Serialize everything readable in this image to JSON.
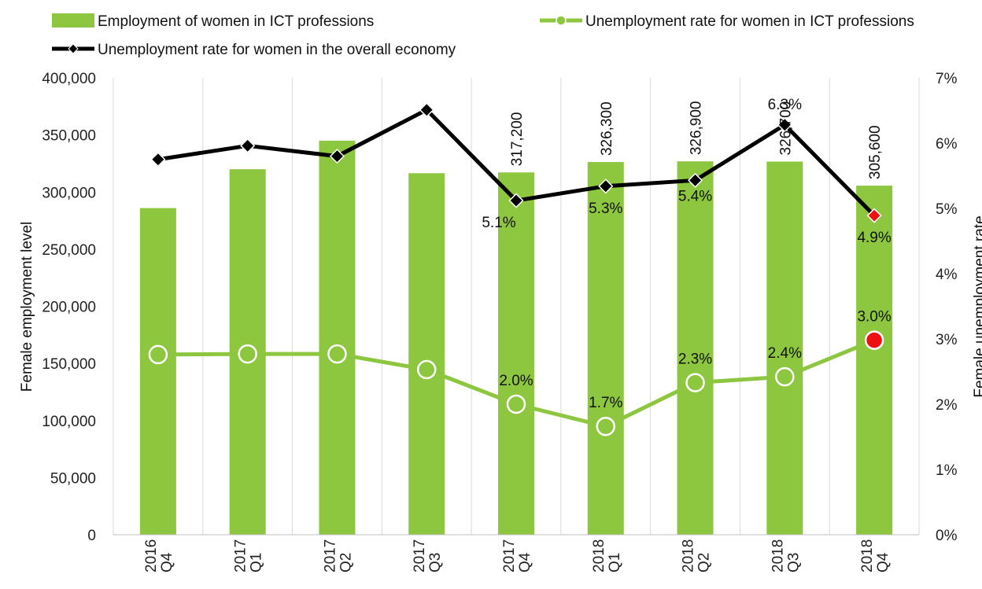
{
  "chart_data": {
    "type": "bar",
    "categories": [
      [
        "2016",
        "Q4"
      ],
      [
        "2017",
        "Q1"
      ],
      [
        "2017",
        "Q2"
      ],
      [
        "2017",
        "Q3"
      ],
      [
        "2017",
        "Q4"
      ],
      [
        "2018",
        "Q1"
      ],
      [
        "2018",
        "Q2"
      ],
      [
        "2018",
        "Q3"
      ],
      [
        "2018",
        "Q4"
      ]
    ],
    "ylabel": "Female employment  level",
    "y2label": "Female unemployment rate",
    "ylim": [
      0,
      400000
    ],
    "y2lim": [
      0,
      7
    ],
    "yticks": [
      "0",
      "50,000",
      "100,000",
      "150,000",
      "200,000",
      "250,000",
      "300,000",
      "350,000",
      "400,000"
    ],
    "y2ticks": [
      "0%",
      "1%",
      "2%",
      "3%",
      "4%",
      "5%",
      "6%",
      "7%"
    ],
    "grid": "vertical",
    "legend_position": "top",
    "series": [
      {
        "name": "Employment of women in ICT professions",
        "type": "bar",
        "axis": "left",
        "color": "#8dc63f",
        "values": [
          286000,
          320000,
          345000,
          316500,
          317200,
          326300,
          326900,
          326700,
          305600
        ],
        "labels": [
          "",
          "",
          "",
          "",
          "317,200",
          "326,300",
          "326,900",
          "326,700",
          "305,600"
        ]
      },
      {
        "name": "Unemployment rate for women in ICT professions",
        "type": "line",
        "axis": "right",
        "color": "#8dc63f",
        "marker": "circle",
        "values": [
          2.76,
          2.77,
          2.77,
          2.53,
          2.0,
          1.66,
          2.33,
          2.42,
          2.98
        ],
        "labels": [
          "",
          "",
          "",
          "",
          "2.0%",
          "1.7%",
          "2.3%",
          "2.4%",
          "3.0%"
        ],
        "highlight_last_color": "#ee1111"
      },
      {
        "name": "Unemployment rate for women in the overall economy",
        "type": "line",
        "axis": "right",
        "color": "#000000",
        "marker": "diamond",
        "values": [
          5.75,
          5.96,
          5.8,
          6.51,
          5.12,
          5.34,
          5.43,
          6.28,
          4.89
        ],
        "labels": [
          "",
          "",
          "",
          "",
          "5.1%",
          "5.3%",
          "5.4%",
          "6.3%",
          "4.9%"
        ],
        "highlight_last_color": "#ee1111"
      }
    ]
  }
}
